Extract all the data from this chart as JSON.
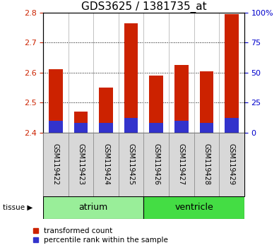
{
  "title": "GDS3625 / 1381735_at",
  "samples": [
    "GSM119422",
    "GSM119423",
    "GSM119424",
    "GSM119425",
    "GSM119426",
    "GSM119427",
    "GSM119428",
    "GSM119429"
  ],
  "transformed_count": [
    2.61,
    2.47,
    2.55,
    2.765,
    2.59,
    2.625,
    2.605,
    2.795
  ],
  "percentile_rank": [
    10,
    8,
    8,
    12,
    8,
    10,
    8,
    12
  ],
  "baseline": 2.4,
  "ylim_left": [
    2.4,
    2.8
  ],
  "ylim_right": [
    0,
    100
  ],
  "yticks_left": [
    2.4,
    2.5,
    2.6,
    2.7,
    2.8
  ],
  "yticks_right": [
    0,
    25,
    50,
    75,
    100
  ],
  "ytick_labels_right": [
    "0",
    "25",
    "50",
    "75",
    "100%"
  ],
  "bar_color_red": "#cc2200",
  "bar_color_blue": "#3333cc",
  "tissue_groups": [
    {
      "label": "atrium",
      "samples_idx": [
        0,
        1,
        2,
        3
      ],
      "color": "#99ee99"
    },
    {
      "label": "ventricle",
      "samples_idx": [
        4,
        5,
        6,
        7
      ],
      "color": "#44dd44"
    }
  ],
  "tissue_label": "tissue",
  "bar_width": 0.55,
  "left_tick_color": "#cc2200",
  "right_tick_color": "#0000cc",
  "legend_items": [
    {
      "label": "transformed count",
      "color": "#cc2200"
    },
    {
      "label": "percentile rank within the sample",
      "color": "#3333cc"
    }
  ],
  "title_fontsize": 11,
  "tick_fontsize": 8,
  "label_fontsize": 7,
  "legend_fontsize": 7.5
}
